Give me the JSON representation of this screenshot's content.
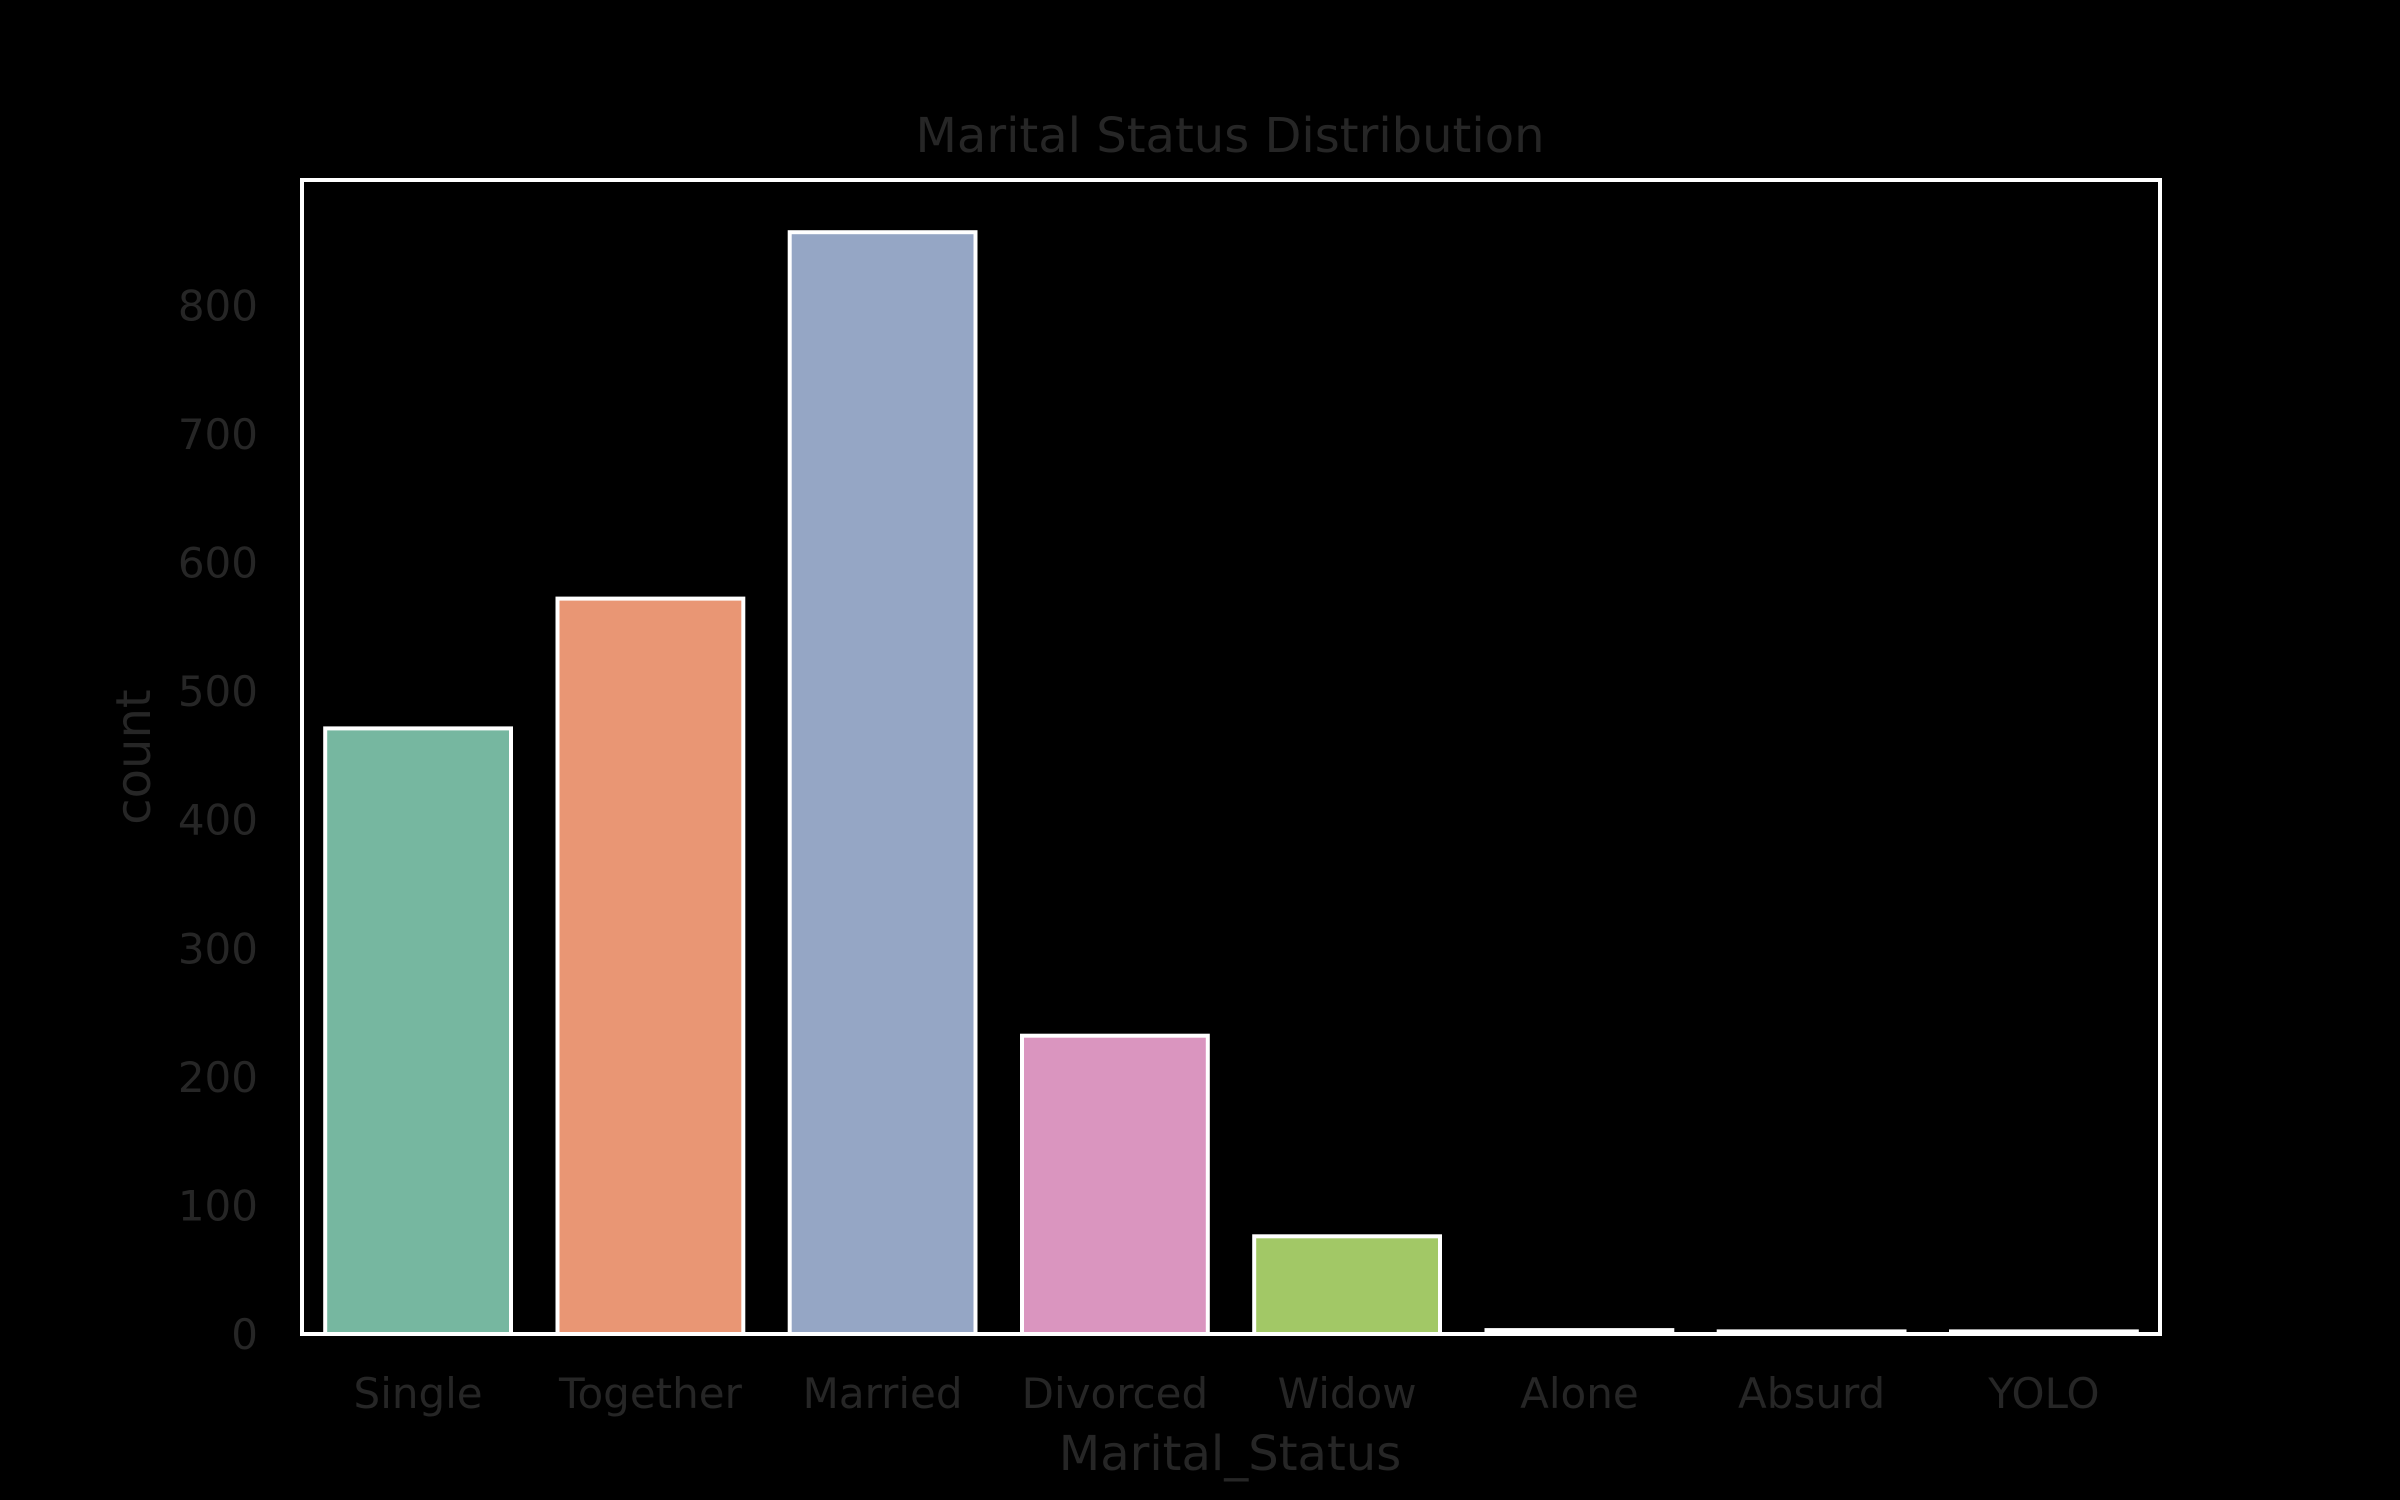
{
  "chart_data": {
    "type": "bar",
    "title": "Marital Status Distribution",
    "xlabel": "Marital_Status",
    "ylabel": "count",
    "categories": [
      "Single",
      "Together",
      "Married",
      "Divorced",
      "Widow",
      "Alone",
      "Absurd",
      "YOLO"
    ],
    "values": [
      471,
      572,
      857,
      232,
      76,
      3,
      2,
      2
    ],
    "colors": [
      "#76b7a0",
      "#e99674",
      "#95a6c5",
      "#da95bf",
      "#a2c866",
      "#ffd92f",
      "#e5c494",
      "#b3b3b3"
    ],
    "ylim": [
      0,
      900
    ],
    "yticks": [
      0,
      100,
      200,
      300,
      400,
      500,
      600,
      700,
      800
    ],
    "grid": false,
    "legend": "none"
  }
}
